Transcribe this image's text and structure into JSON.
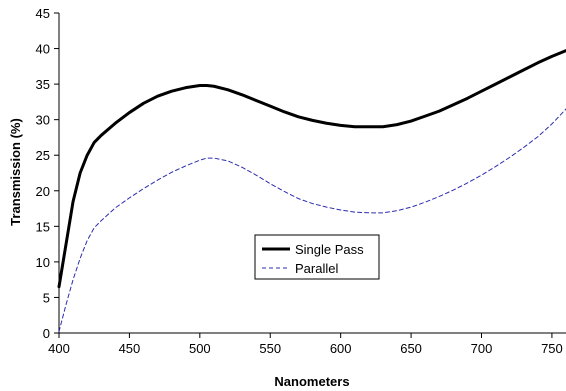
{
  "chart_data": {
    "type": "line",
    "title": "",
    "xlabel": "Nanometers",
    "ylabel": "Transmission (%)",
    "xlim": [
      400,
      760
    ],
    "ylim": [
      0,
      45
    ],
    "xticks": [
      400,
      450,
      500,
      550,
      600,
      650,
      700,
      750
    ],
    "yticks": [
      0,
      5,
      10,
      15,
      20,
      25,
      30,
      35,
      40,
      45
    ],
    "grid": false,
    "legend_position": "center",
    "series": [
      {
        "name": "Single Pass",
        "color": "#000000",
        "style": "solid-thick",
        "x": [
          400,
          405,
          410,
          415,
          420,
          425,
          430,
          440,
          450,
          460,
          470,
          480,
          490,
          500,
          505,
          510,
          520,
          530,
          540,
          550,
          560,
          570,
          580,
          590,
          600,
          610,
          620,
          630,
          640,
          650,
          660,
          670,
          680,
          690,
          700,
          710,
          720,
          730,
          740,
          750,
          760
        ],
        "y": [
          6.5,
          12.5,
          18.5,
          22.5,
          25.0,
          26.8,
          27.8,
          29.5,
          31.0,
          32.3,
          33.3,
          34.0,
          34.5,
          34.8,
          34.8,
          34.7,
          34.2,
          33.5,
          32.7,
          31.9,
          31.1,
          30.4,
          29.9,
          29.5,
          29.2,
          29.0,
          29.0,
          29.0,
          29.3,
          29.8,
          30.5,
          31.2,
          32.1,
          33.0,
          34.0,
          35.0,
          36.0,
          37.0,
          38.0,
          38.9,
          39.7
        ]
      },
      {
        "name": "Parallel",
        "color": "#2b2bb0",
        "style": "dashed",
        "x": [
          400,
          405,
          410,
          415,
          420,
          425,
          430,
          440,
          450,
          460,
          470,
          480,
          490,
          500,
          505,
          510,
          520,
          530,
          540,
          550,
          560,
          570,
          580,
          590,
          600,
          610,
          620,
          630,
          640,
          650,
          660,
          670,
          680,
          690,
          700,
          710,
          720,
          730,
          740,
          750,
          760
        ],
        "y": [
          0.2,
          4.0,
          7.5,
          10.5,
          13.0,
          14.8,
          15.8,
          17.6,
          19.0,
          20.3,
          21.5,
          22.6,
          23.5,
          24.3,
          24.6,
          24.6,
          24.2,
          23.3,
          22.2,
          21.0,
          19.9,
          18.9,
          18.2,
          17.7,
          17.3,
          17.0,
          16.9,
          16.9,
          17.2,
          17.7,
          18.4,
          19.2,
          20.1,
          21.1,
          22.2,
          23.4,
          24.7,
          26.1,
          27.6,
          29.4,
          31.5
        ]
      }
    ]
  }
}
